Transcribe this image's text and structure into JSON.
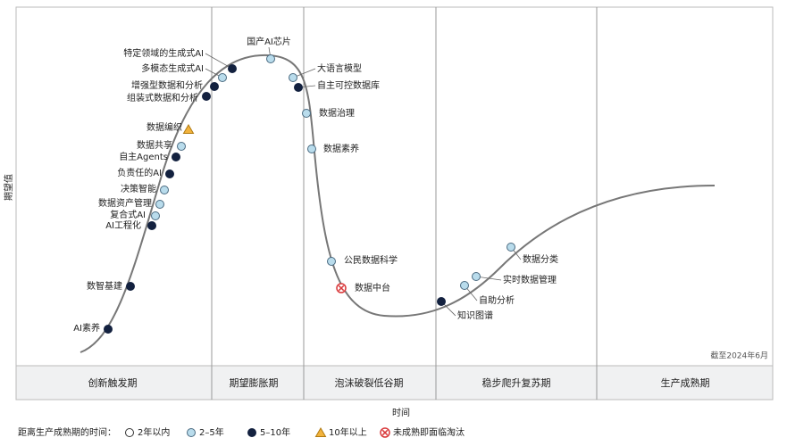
{
  "y_axis_label": "期望值",
  "x_axis_label": "时间",
  "date_note": "截至2024年6月",
  "phases": [
    "创新触发期",
    "期望膨胀期",
    "泡沫破裂低谷期",
    "稳步爬升复苏期",
    "生产成熟期"
  ],
  "legend": {
    "title": "距离生产成熟期的时间：",
    "items": [
      {
        "label": "2年以内"
      },
      {
        "label": "2–5年"
      },
      {
        "label": "5–10年"
      },
      {
        "label": "10年以上"
      },
      {
        "label": "未成熟即面临淘汰"
      }
    ]
  },
  "technologies": [
    {
      "label": "AI素养",
      "maturity": "5–10年"
    },
    {
      "label": "数智基建",
      "maturity": "5–10年"
    },
    {
      "label": "AI工程化",
      "maturity": "5–10年"
    },
    {
      "label": "复合式AI",
      "maturity": "2–5年"
    },
    {
      "label": "数据资产管理",
      "maturity": "2–5年"
    },
    {
      "label": "决策智能",
      "maturity": "2–5年"
    },
    {
      "label": "负责任的AI",
      "maturity": "5–10年"
    },
    {
      "label": "自主Agents",
      "maturity": "5–10年"
    },
    {
      "label": "数据共享",
      "maturity": "2–5年"
    },
    {
      "label": "数据编织",
      "maturity": "10年以上"
    },
    {
      "label": "组装式数据和分析",
      "maturity": "5–10年"
    },
    {
      "label": "增强型数据和分析",
      "maturity": "5–10年"
    },
    {
      "label": "多模态生成式AI",
      "maturity": "2–5年"
    },
    {
      "label": "特定领域的生成式AI",
      "maturity": "5–10年"
    },
    {
      "label": "国产AI芯片",
      "maturity": "2–5年"
    },
    {
      "label": "大语言模型",
      "maturity": "2–5年"
    },
    {
      "label": "自主可控数据库",
      "maturity": "5–10年"
    },
    {
      "label": "数据治理",
      "maturity": "2–5年"
    },
    {
      "label": "数据素养",
      "maturity": "2–5年"
    },
    {
      "label": "公民数据科学",
      "maturity": "2–5年"
    },
    {
      "label": "数据中台",
      "maturity": "未成熟即面临淘汰"
    },
    {
      "label": "知识图谱",
      "maturity": "5–10年"
    },
    {
      "label": "自助分析",
      "maturity": "2–5年"
    },
    {
      "label": "实时数据管理",
      "maturity": "2–5年"
    },
    {
      "label": "数据分类",
      "maturity": "2–5年"
    }
  ]
}
